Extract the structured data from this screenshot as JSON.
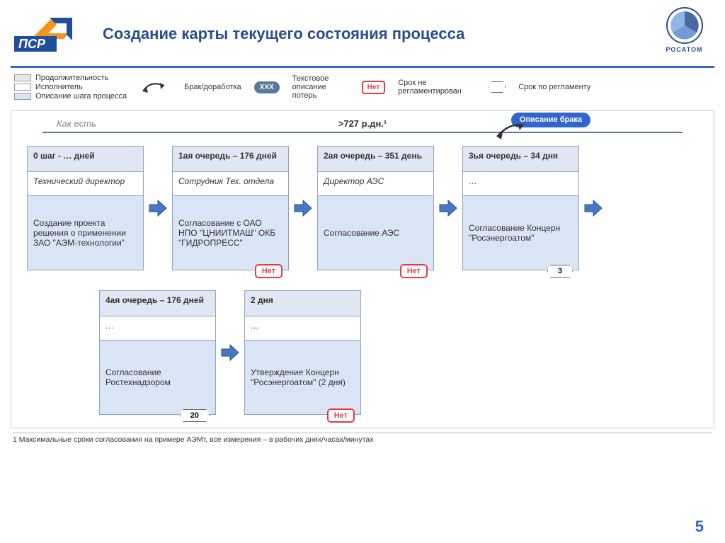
{
  "title": "Создание карты текущего состояния процесса",
  "logo_psr_text": "ПСР",
  "logo_rosatom_text": "РОСАТОМ",
  "legend": {
    "duration": "Продолжительность",
    "performer": "Исполнитель",
    "step_desc": "Описание шага процесса",
    "defect": "Брак/доработка",
    "xxx": "ХХХ",
    "text_loss": "Текстовое описание потерь",
    "net": "Нет",
    "no_deadline": "Срок не регламентирован",
    "deadline": "Срок по регламенту",
    "box_colors": {
      "duration": "#e8e8e8",
      "performer": "#ffffff",
      "desc": "#d9e4f5"
    }
  },
  "top_bar": {
    "as_is": "Как есть",
    "total": ">727 р.дн.¹",
    "defect_label": "Описание брака"
  },
  "colors": {
    "accent_blue": "#3366cc",
    "header_blue": "#2b4d8f",
    "card_border": "#8fa4c4",
    "card_header_bg": "#e0e7f2",
    "card_body_bg": "#d9e4f5",
    "arrow_fill": "#4a77c4",
    "arrow_stroke": "#2b4d8f",
    "red": "#e63946",
    "oval_bg": "#5a7a9a"
  },
  "steps_row1": [
    {
      "header": "0 шаг - … дней",
      "person": "Технический директор",
      "body": "Создание проекта решения о применении ЗАО \"АЭМ-технологии\"",
      "badge": null
    },
    {
      "header": "1ая очередь – 176 дней",
      "person": "Сотрудник Тех. отдела",
      "body": "Согласование с ОАО НПО \"ЦНИИТМАШ\" ОКБ \"ГИДРОПРЕСС\"",
      "badge": {
        "type": "net",
        "text": "Нет"
      }
    },
    {
      "header": "2ая очередь – 351 день",
      "person": "Директор АЭС",
      "body": "Согласование АЭС",
      "badge": {
        "type": "net",
        "text": "Нет"
      }
    },
    {
      "header": "3ья очередь – 34 дня",
      "person": "…",
      "body": "Согласование Концерн \"Росэнергоатом\"",
      "badge": {
        "type": "hex",
        "text": "3"
      }
    }
  ],
  "steps_row2": [
    {
      "header": "4ая очередь – 176 дней",
      "person": "…",
      "body": "Согласование Ростехнадзором",
      "badge": {
        "type": "hex",
        "text": "20"
      }
    },
    {
      "header": "2 дня",
      "person": "…",
      "body": "Утверждение Концерн \"Росэнергоатом\" (2 дня)",
      "badge": {
        "type": "net",
        "text": "Нет"
      }
    }
  ],
  "footnote": "1  Максимальные сроки согласования на примере АЭМт, все измерения – в рабочих днях/часах/минутах",
  "page_number": "5"
}
